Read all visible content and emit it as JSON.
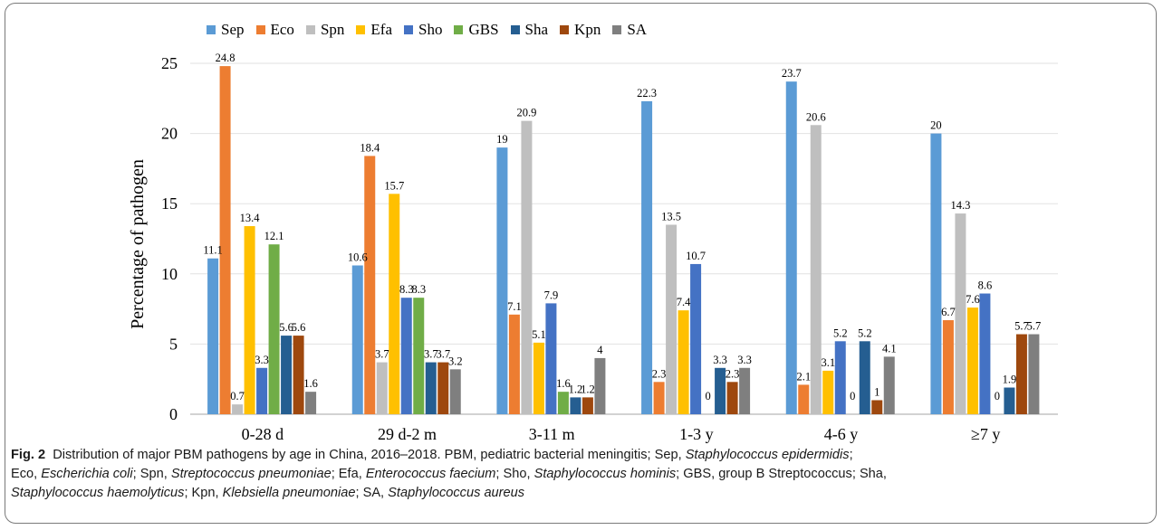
{
  "chart_data": {
    "type": "bar",
    "categories": [
      "0-28 d",
      "29 d-2 m",
      "3-11 m",
      "1-3 y",
      "4-6 y",
      "≥7 y"
    ],
    "ylabel": "Percentage of pathogen",
    "ylim": [
      0,
      25
    ],
    "yticks": [
      "0",
      "5",
      "10",
      "15",
      "20",
      "25"
    ],
    "grid": true,
    "legend_position": "top",
    "series": [
      {
        "name": "Sep",
        "color": "#5b9bd5",
        "values": [
          11.1,
          10.6,
          19,
          22.3,
          23.7,
          20
        ],
        "labels": [
          "11.1",
          "10.6",
          "19",
          "22.3",
          "23.7",
          "20"
        ]
      },
      {
        "name": "Eco",
        "color": "#ed7d31",
        "values": [
          24.8,
          18.4,
          7.1,
          2.3,
          2.1,
          6.7
        ],
        "labels": [
          "24.8",
          "18.4",
          "7.1",
          "2.3",
          "2.1",
          "6.7"
        ]
      },
      {
        "name": "Spn",
        "color": "#bfbfbf",
        "values": [
          0.7,
          3.7,
          20.9,
          13.5,
          20.6,
          14.3
        ],
        "labels": [
          "0.7",
          "3.7",
          "20.9",
          "13.5",
          "20.6",
          "14.3"
        ]
      },
      {
        "name": "Efa",
        "color": "#ffc000",
        "values": [
          13.4,
          15.7,
          5.1,
          7.4,
          3.1,
          7.6
        ],
        "labels": [
          "13.4",
          "15.7",
          "5.1",
          "7.4",
          "3.1",
          "7.6"
        ]
      },
      {
        "name": "Sho",
        "color": "#4472c4",
        "values": [
          3.3,
          8.3,
          7.9,
          10.7,
          5.2,
          8.6
        ],
        "labels": [
          "3.3",
          "8.3",
          "7.9",
          "10.7",
          "5.2",
          "8.6"
        ]
      },
      {
        "name": "GBS",
        "color": "#70ad47",
        "values": [
          12.1,
          8.3,
          1.6,
          0,
          0,
          0
        ],
        "labels": [
          "12.1",
          "8.3",
          "1.6",
          "0",
          "0",
          "0"
        ]
      },
      {
        "name": "Sha",
        "color": "#255e91",
        "values": [
          5.6,
          3.7,
          1.2,
          3.3,
          5.2,
          1.9
        ],
        "labels": [
          "5.6",
          "3.7",
          "1.2",
          "3.3",
          "5.2",
          "1.9"
        ]
      },
      {
        "name": "Kpn",
        "color": "#9e480e",
        "values": [
          5.6,
          3.7,
          1.2,
          2.3,
          1,
          5.7
        ],
        "labels": [
          "5.6",
          "3.7",
          "1.2",
          "2.3",
          "1",
          "5.7"
        ]
      },
      {
        "name": "SA",
        "color": "#7f7f7f",
        "values": [
          1.6,
          3.2,
          4,
          3.3,
          4.1,
          5.7
        ],
        "labels": [
          "1.6",
          "3.2",
          "4",
          "3.3",
          "4.1",
          "5.7"
        ]
      }
    ]
  },
  "caption": {
    "fig_label": "Fig. 2",
    "line1_text": "Distribution of major PBM pathogens by age in China, 2016–2018. PBM, pediatric bacterial meningitis; Sep, ",
    "sep_name": "Staphylococcus epidermidis",
    "line1_end": ";",
    "eco_abbr": "Eco, ",
    "eco_name": "Escherichia coli",
    "spn_abbr": "; Spn, ",
    "spn_name": "Streptococcus pneumoniae",
    "efa_abbr": "; Efa, ",
    "efa_name": "Enterococcus faecium",
    "sho_abbr": "; Sho, ",
    "sho_name": "Staphylococcus hominis",
    "gbs_text": "; GBS, group B Streptococcus; Sha,",
    "sha_name": "Staphylococcus haemolyticus",
    "kpn_abbr": "; Kpn, ",
    "kpn_name": "Klebsiella pneumoniae",
    "sa_abbr": "; SA, ",
    "sa_name": "Staphylococcus aureus"
  }
}
